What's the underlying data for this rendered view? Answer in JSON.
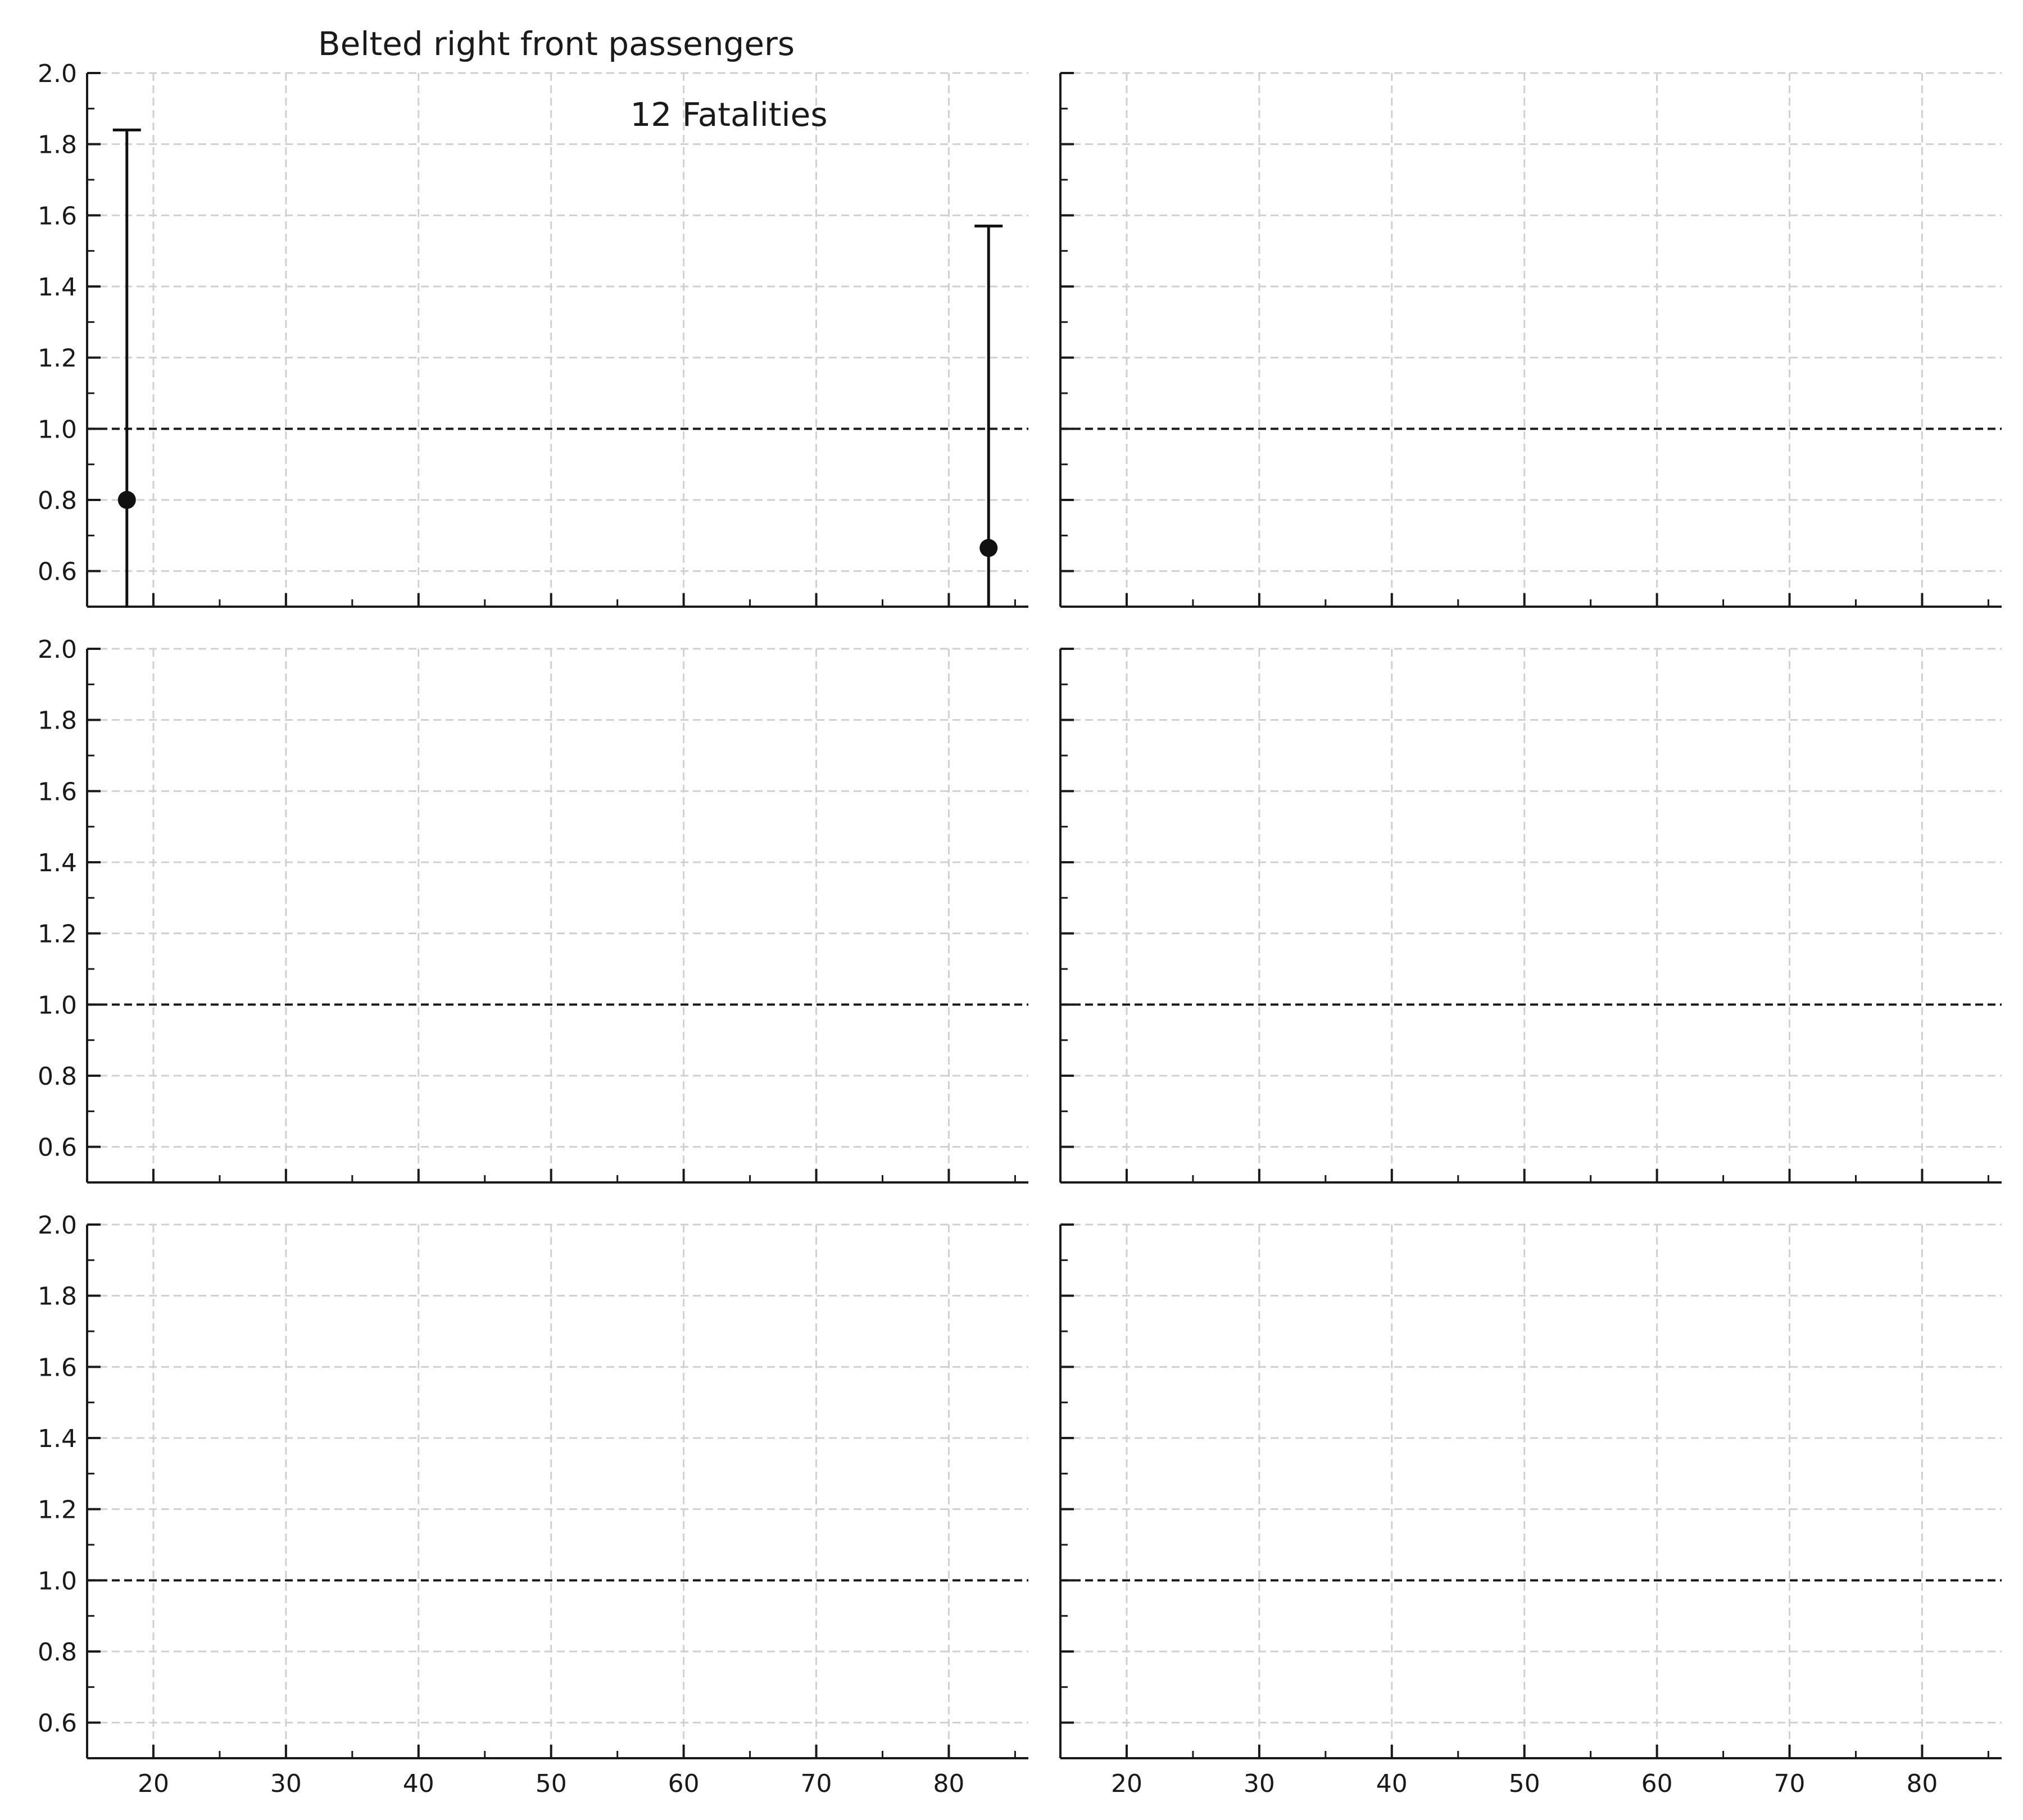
{
  "chart_data": [
    {
      "type": "scatter",
      "title": "Belted right front passengers",
      "annotation": "12 Fatalities",
      "xlim": [
        15,
        86
      ],
      "ylim": [
        0.5,
        2.0
      ],
      "x_ticks": [
        20,
        30,
        40,
        50,
        60,
        70,
        80
      ],
      "y_ticks": [
        0.6,
        0.8,
        1.0,
        1.2,
        1.4,
        1.6,
        1.8,
        2.0
      ],
      "x_tick_labels_shown": false,
      "y_tick_labels_shown": true,
      "reference_line": 1.0,
      "grid": true,
      "points": [
        {
          "x": 18,
          "y": 0.8,
          "ci_low": 0.0,
          "ci_high": 1.84
        },
        {
          "x": 83,
          "y": 0.665,
          "ci_low": 0.0,
          "ci_high": 1.57
        }
      ]
    },
    {
      "type": "scatter",
      "xlim": [
        15,
        86
      ],
      "ylim": [
        0.5,
        2.0
      ],
      "x_ticks": [
        20,
        30,
        40,
        50,
        60,
        70,
        80
      ],
      "y_ticks": [
        0.6,
        0.8,
        1.0,
        1.2,
        1.4,
        1.6,
        1.8,
        2.0
      ],
      "x_tick_labels_shown": false,
      "y_tick_labels_shown": false,
      "reference_line": 1.0,
      "grid": true,
      "points": []
    },
    {
      "type": "scatter",
      "xlim": [
        15,
        86
      ],
      "ylim": [
        0.5,
        2.0
      ],
      "x_ticks": [
        20,
        30,
        40,
        50,
        60,
        70,
        80
      ],
      "y_ticks": [
        0.6,
        0.8,
        1.0,
        1.2,
        1.4,
        1.6,
        1.8,
        2.0
      ],
      "x_tick_labels_shown": false,
      "y_tick_labels_shown": true,
      "reference_line": 1.0,
      "grid": true,
      "points": []
    },
    {
      "type": "scatter",
      "xlim": [
        15,
        86
      ],
      "ylim": [
        0.5,
        2.0
      ],
      "x_ticks": [
        20,
        30,
        40,
        50,
        60,
        70,
        80
      ],
      "y_ticks": [
        0.6,
        0.8,
        1.0,
        1.2,
        1.4,
        1.6,
        1.8,
        2.0
      ],
      "x_tick_labels_shown": false,
      "y_tick_labels_shown": false,
      "reference_line": 1.0,
      "grid": true,
      "points": []
    },
    {
      "type": "scatter",
      "xlim": [
        15,
        86
      ],
      "ylim": [
        0.5,
        2.0
      ],
      "x_ticks": [
        20,
        30,
        40,
        50,
        60,
        70,
        80
      ],
      "y_ticks": [
        0.6,
        0.8,
        1.0,
        1.2,
        1.4,
        1.6,
        1.8,
        2.0
      ],
      "x_tick_labels_shown": true,
      "y_tick_labels_shown": true,
      "reference_line": 1.0,
      "grid": true,
      "points": []
    },
    {
      "type": "scatter",
      "xlim": [
        15,
        86
      ],
      "ylim": [
        0.5,
        2.0
      ],
      "x_ticks": [
        20,
        30,
        40,
        50,
        60,
        70,
        80
      ],
      "y_ticks": [
        0.6,
        0.8,
        1.0,
        1.2,
        1.4,
        1.6,
        1.8,
        2.0
      ],
      "x_tick_labels_shown": true,
      "y_tick_labels_shown": false,
      "reference_line": 1.0,
      "grid": true,
      "points": []
    }
  ],
  "colors": {
    "marker": "#111111",
    "grid": "#d0d0d0",
    "axis": "#1a1a1a",
    "reference_line": "#1a1a1a"
  }
}
